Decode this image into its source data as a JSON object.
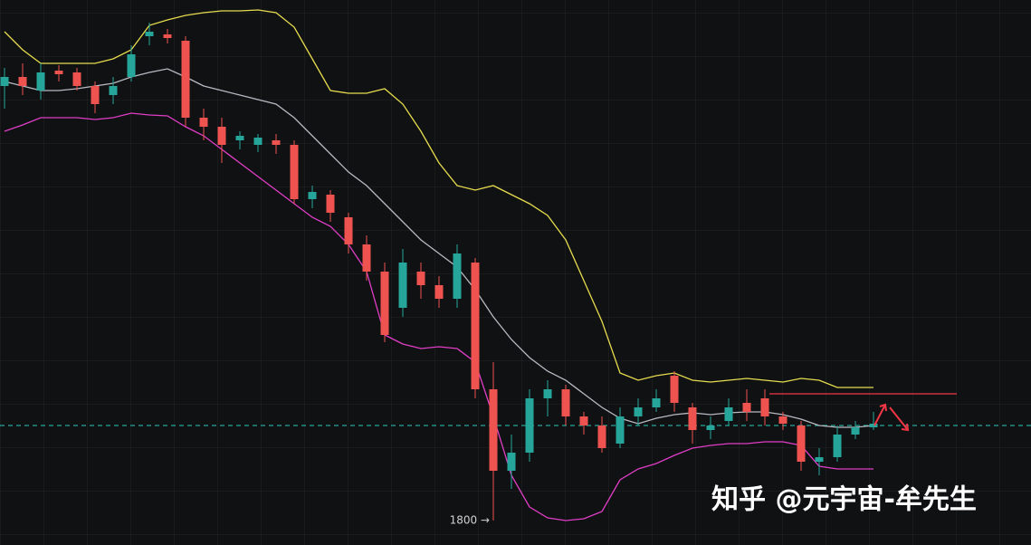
{
  "chart_data": {
    "type": "candlestick",
    "ylim": [
      1773,
      2375
    ],
    "up_color": "#26a69a",
    "down_color": "#ef5350",
    "open": [
      2280,
      2290,
      2275,
      2297,
      2295,
      2280,
      2270,
      2290,
      2335,
      2337,
      2330,
      2245,
      2235,
      2220,
      2215,
      2220,
      2215,
      2155,
      2160,
      2135,
      2105,
      2075,
      2035,
      2075,
      2060,
      2045,
      2085,
      1945,
      1855,
      1875,
      1935,
      1945,
      1915,
      1905,
      1885,
      1915,
      1925,
      1960,
      1925,
      1900,
      1910,
      1930,
      1935,
      1915,
      1905,
      1865,
      1870,
      1895,
      1903
    ],
    "high": [
      2300,
      2305,
      2305,
      2303,
      2300,
      2285,
      2290,
      2325,
      2350,
      2343,
      2335,
      2255,
      2245,
      2230,
      2227,
      2227,
      2220,
      2170,
      2165,
      2140,
      2115,
      2085,
      2100,
      2085,
      2070,
      2105,
      2090,
      1975,
      1895,
      1945,
      1955,
      1950,
      1920,
      1915,
      1925,
      1935,
      1945,
      1965,
      1930,
      1915,
      1935,
      1945,
      1945,
      1920,
      1910,
      1880,
      1905,
      1910,
      1920
    ],
    "low": [
      2255,
      2270,
      2265,
      2285,
      2275,
      2250,
      2260,
      2285,
      2325,
      2327,
      2235,
      2220,
      2195,
      2210,
      2207,
      2205,
      2150,
      2145,
      2130,
      2095,
      2065,
      1997,
      2025,
      2045,
      2035,
      2035,
      1935,
      1800,
      1835,
      1865,
      1915,
      1905,
      1895,
      1875,
      1880,
      1905,
      1920,
      1920,
      1885,
      1890,
      1905,
      1910,
      1905,
      1900,
      1855,
      1850,
      1865,
      1890,
      1900
    ],
    "close": [
      2290,
      2280,
      2295,
      2293,
      2280,
      2260,
      2280,
      2315,
      2340,
      2333,
      2245,
      2235,
      2215,
      2225,
      2223,
      2215,
      2155,
      2163,
      2140,
      2105,
      2075,
      2005,
      2085,
      2060,
      2045,
      2095,
      1945,
      1855,
      1875,
      1935,
      1945,
      1915,
      1905,
      1880,
      1915,
      1925,
      1935,
      1930,
      1900,
      1905,
      1925,
      1920,
      1915,
      1907,
      1865,
      1870,
      1895,
      1903,
      1907
    ],
    "bands": [
      {
        "color": "#e6dc4e",
        "values": [
          2340,
          2320,
          2305,
          2305,
          2305,
          2305,
          2310,
          2320,
          2347,
          2353,
          2358,
          2361,
          2363,
          2363,
          2364,
          2361,
          2345,
          2310,
          2275,
          2272,
          2272,
          2277,
          2260,
          2230,
          2195,
          2170,
          2165,
          2170,
          2160,
          2150,
          2137,
          2110,
          2065,
          2020,
          1963,
          1955,
          1960,
          1963,
          1955,
          1953,
          1955,
          1957,
          1955,
          1953,
          1957,
          1955,
          1947,
          1947,
          1947
        ]
      },
      {
        "color": "#b9b9c2",
        "values": [
          2285,
          2280,
          2275,
          2275,
          2277,
          2280,
          2283,
          2290,
          2295,
          2299,
          2290,
          2280,
          2275,
          2270,
          2265,
          2260,
          2245,
          2225,
          2205,
          2185,
          2170,
          2150,
          2130,
          2110,
          2095,
          2080,
          2055,
          2025,
          2000,
          1980,
          1965,
          1955,
          1940,
          1925,
          1913,
          1907,
          1913,
          1917,
          1919,
          1917,
          1919,
          1920,
          1920,
          1917,
          1912,
          1905,
          1903,
          1903,
          1905
        ]
      },
      {
        "color": "#e03ec6",
        "values": [
          2230,
          2237,
          2245,
          2245,
          2245,
          2243,
          2245,
          2250,
          2248,
          2247,
          2235,
          2225,
          2210,
          2195,
          2180,
          2165,
          2150,
          2135,
          2125,
          2105,
          2075,
          2005,
          1995,
          1990,
          1992,
          1990,
          1975,
          1915,
          1850,
          1815,
          1803,
          1800,
          1802,
          1810,
          1845,
          1857,
          1863,
          1872,
          1880,
          1883,
          1885,
          1885,
          1887,
          1887,
          1883,
          1860,
          1857,
          1857,
          1857
        ]
      }
    ],
    "hlines": [
      {
        "value": 1940,
        "color": "#f23645",
        "dashed": false
      },
      {
        "value": 1905,
        "color": "#26a69a",
        "dashed": true
      }
    ],
    "annotation": "1800 →",
    "watermark": "知乎 @元宇宙-牟先生"
  }
}
